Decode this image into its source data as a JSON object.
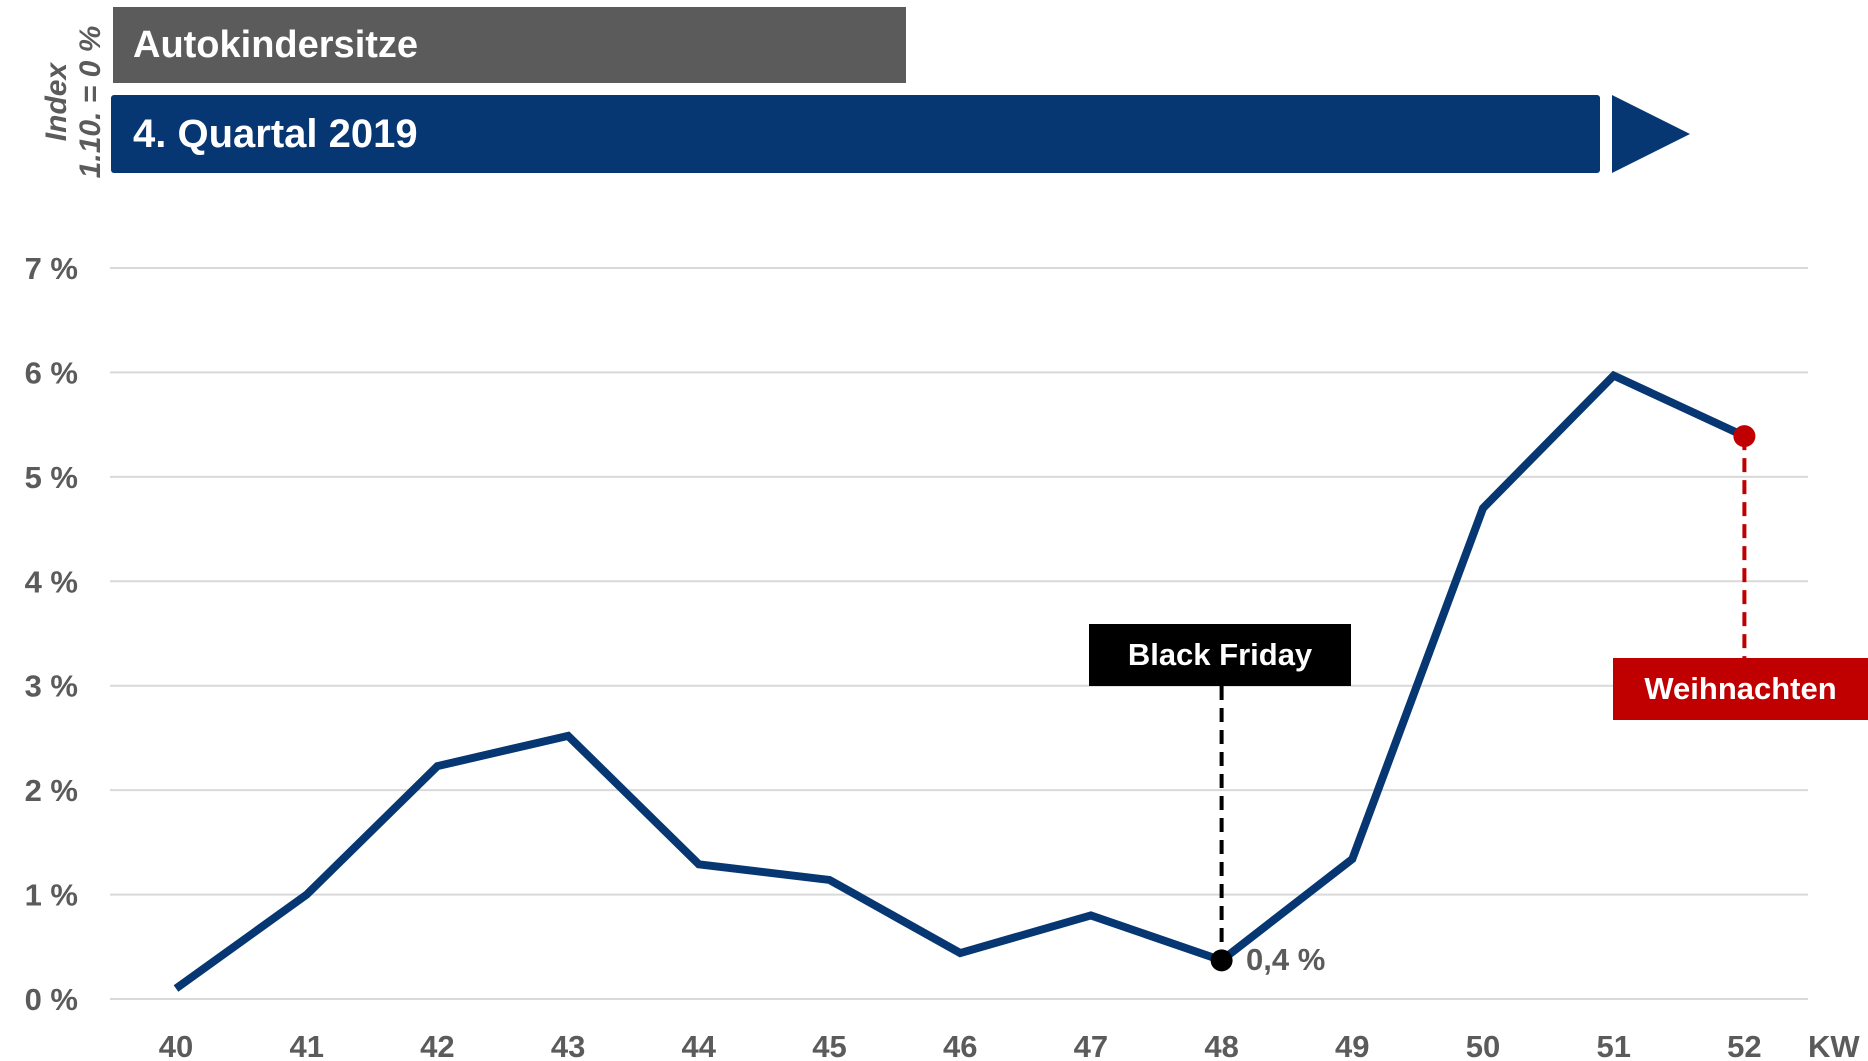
{
  "header": {
    "title": "Autokindersitze",
    "period": "4. Quartal 2019"
  },
  "colors": {
    "title_bg": "#5b5b5b",
    "period_bg": "#073772",
    "line": "#073772",
    "grid": "#d9d9d9",
    "text": "#5b5b5b",
    "black_friday": "#000000",
    "christmas": "#c00000"
  },
  "chart_data": {
    "type": "line",
    "ylabel_line1": "Index",
    "ylabel_line2": "1.10. = 0 %",
    "xlabel": "KW",
    "x": [
      "40",
      "41",
      "42",
      "43",
      "44",
      "45",
      "46",
      "47",
      "48",
      "49",
      "50",
      "51",
      "52"
    ],
    "series": [
      {
        "values": [
          0.1,
          1.0,
          2.23,
          2.52,
          1.29,
          1.14,
          0.44,
          0.8,
          0.37,
          1.34,
          4.7,
          5.97,
          5.39
        ]
      }
    ],
    "yticks": [
      "0 %",
      "1 %",
      "2 %",
      "3 %",
      "4 %",
      "5 %",
      "6 %",
      "7 %"
    ],
    "ylim": [
      0,
      7
    ],
    "grid": true,
    "annotations": {
      "black_friday": {
        "label": "Black Friday",
        "x": "48",
        "value_label": "0,4 %"
      },
      "christmas": {
        "label": "Weihnachten",
        "x": "52"
      }
    }
  }
}
